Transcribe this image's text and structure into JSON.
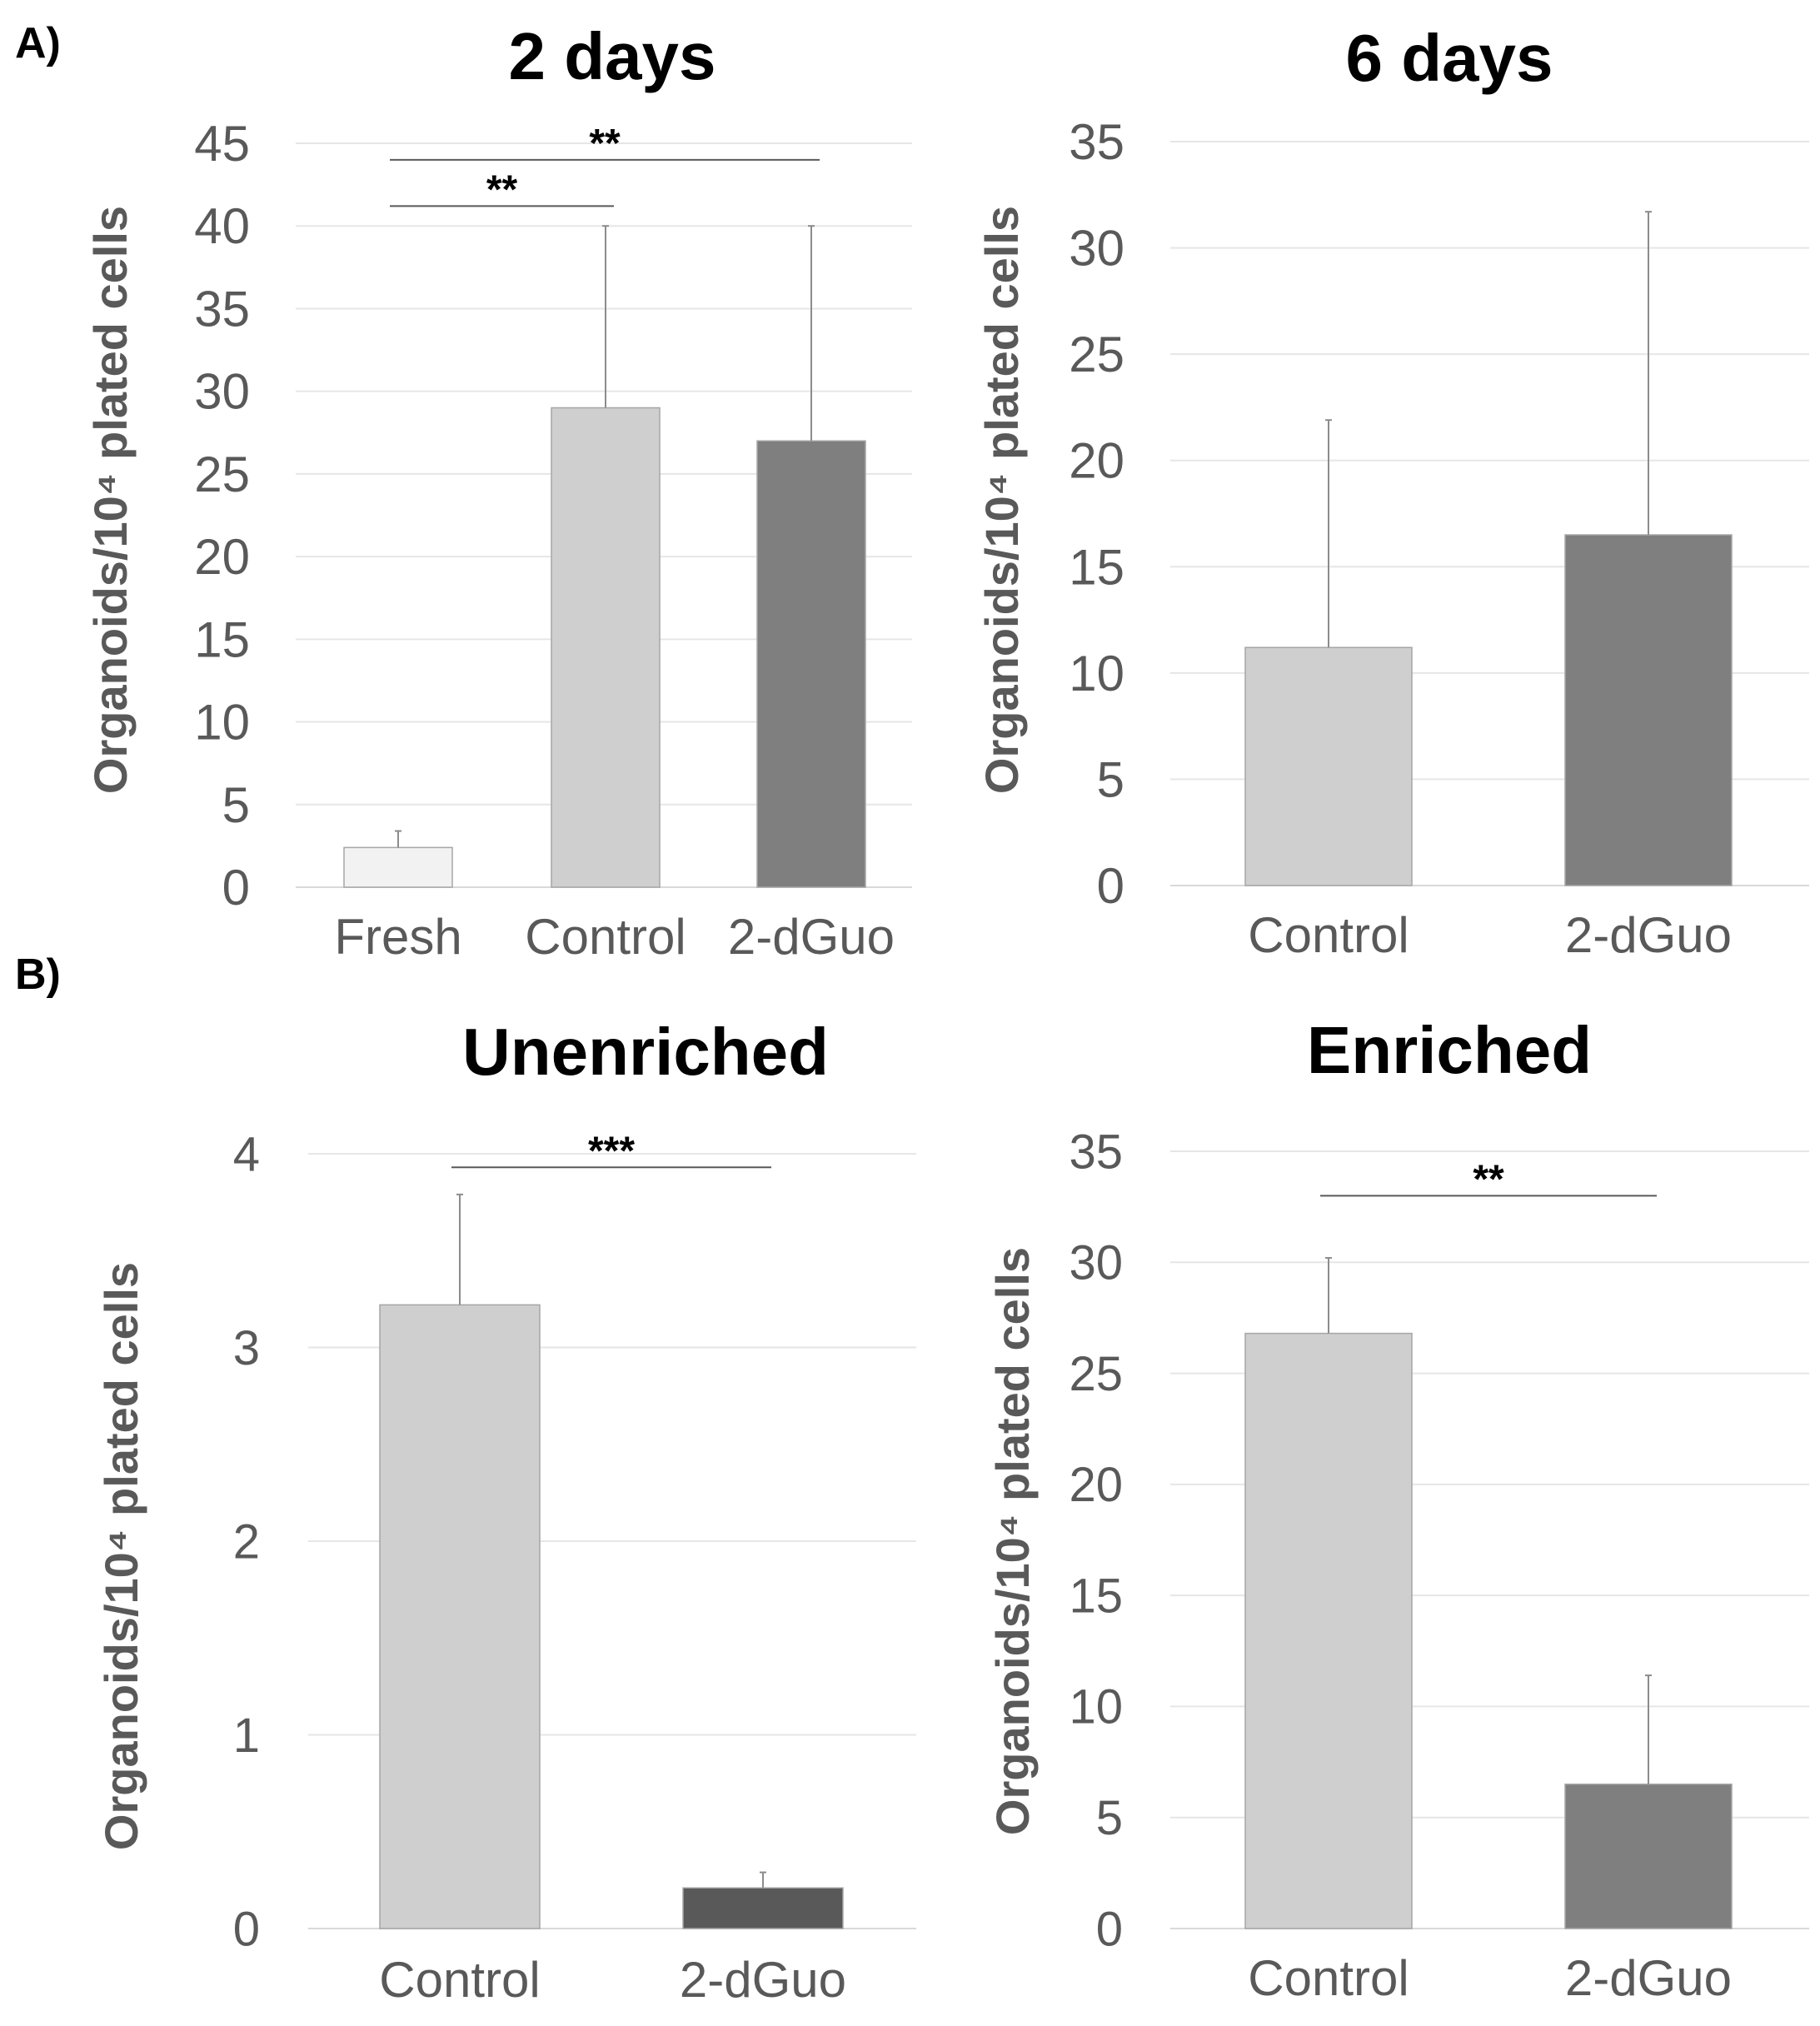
{
  "figure": {
    "panel_a_label": "A)",
    "panel_b_label": "B)"
  },
  "colors": {
    "fresh": "#f2f2f2",
    "control": "#d0cfd0",
    "dguo_mid": "#7f7f7f",
    "dguo_dark": "#595959",
    "grid": "#e6e6e6",
    "axis_text": "#595959",
    "bar_edge": "#a6a6a6",
    "error": "#8c8c8c",
    "sig_line": "#595959"
  },
  "chart_data": [
    {
      "id": "chart-2days",
      "type": "bar",
      "title": "2 days",
      "ylabel": "Organoids/10⁴ plated cells",
      "xlabel": "",
      "categories": [
        "Fresh",
        "Control",
        "2-dGuo"
      ],
      "values": [
        2.4,
        29,
        27
      ],
      "errors": [
        1.0,
        11,
        13
      ],
      "bar_colors": [
        "fresh",
        "control",
        "dguo_mid"
      ],
      "ylim": [
        0,
        45
      ],
      "yticks": [
        0,
        5,
        10,
        15,
        20,
        25,
        30,
        35,
        40,
        45
      ],
      "grid": true,
      "significance": [
        {
          "from": 0,
          "to": 1,
          "y": 41.2,
          "label": "**"
        },
        {
          "from": 0,
          "to": 2,
          "y": 44.0,
          "label": "**"
        }
      ]
    },
    {
      "id": "chart-6days",
      "type": "bar",
      "title": "6 days",
      "ylabel": "Organoids/10⁴ plated cells",
      "xlabel": "",
      "categories": [
        "Control",
        "2-dGuo"
      ],
      "values": [
        11.2,
        16.5
      ],
      "errors": [
        10.7,
        15.2
      ],
      "bar_colors": [
        "control",
        "dguo_mid"
      ],
      "ylim": [
        0,
        35
      ],
      "yticks": [
        0,
        5,
        10,
        15,
        20,
        25,
        30,
        35
      ],
      "grid": true,
      "significance": []
    },
    {
      "id": "chart-unenriched",
      "type": "bar",
      "title": "Unenriched",
      "ylabel": "Organoids/10⁴ plated cells",
      "xlabel": "",
      "categories": [
        "Control",
        "2-dGuo"
      ],
      "values": [
        3.22,
        0.21
      ],
      "errors": [
        0.57,
        0.08
      ],
      "bar_colors": [
        "control",
        "dguo_dark"
      ],
      "ylim": [
        0,
        4
      ],
      "yticks": [
        0,
        1,
        2,
        3,
        4
      ],
      "grid": true,
      "significance": [
        {
          "from": 0,
          "to": 1,
          "y": 3.93,
          "label": "***"
        }
      ]
    },
    {
      "id": "chart-enriched",
      "type": "bar",
      "title": "Enriched",
      "ylabel": "Organoids/10⁴ plated cells",
      "xlabel": "",
      "categories": [
        "Control",
        "2-dGuo"
      ],
      "values": [
        26.8,
        6.5
      ],
      "errors": [
        3.4,
        4.9
      ],
      "bar_colors": [
        "control",
        "dguo_mid"
      ],
      "ylim": [
        0,
        35
      ],
      "yticks": [
        0,
        5,
        10,
        15,
        20,
        25,
        30,
        35
      ],
      "grid": true,
      "significance": [
        {
          "from": 0,
          "to": 1,
          "y": 33.0,
          "label": "**"
        }
      ]
    }
  ]
}
